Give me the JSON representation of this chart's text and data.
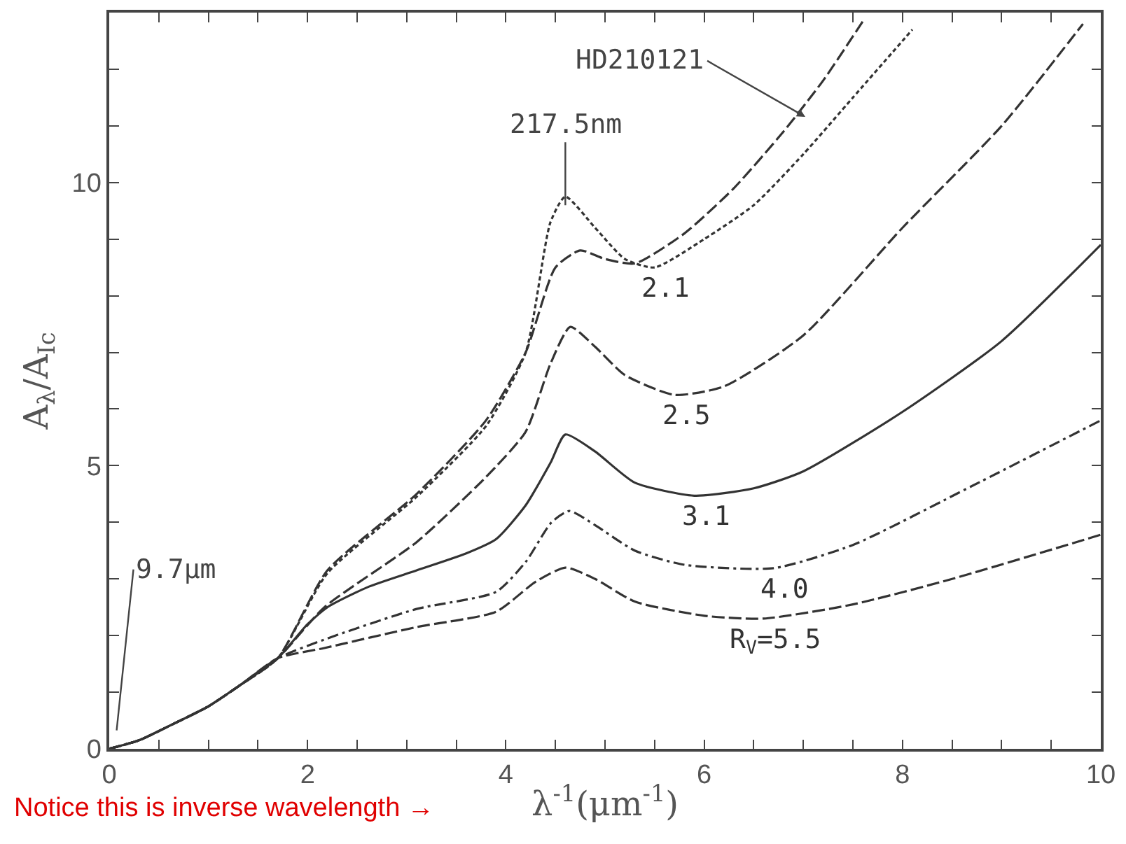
{
  "chart_data": {
    "type": "line",
    "xlabel": "λ$^{-1}$(μm$^{-1}$)",
    "ylabel": "A$_{λ}$/A$_{Ic}$",
    "xlim": [
      0,
      10
    ],
    "ylim": [
      0,
      13
    ],
    "xticks": [
      0,
      {
        "value": 0.5,
        "label": null
      },
      {
        "value": 1,
        "label": null
      },
      {
        "value": 1.5,
        "label": null
      },
      2,
      {
        "value": 2.5,
        "label": null
      },
      {
        "value": 3,
        "label": null
      },
      {
        "value": 3.5,
        "label": null
      },
      4,
      {
        "value": 4.5,
        "label": null
      },
      {
        "value": 5,
        "label": null
      },
      {
        "value": 5.5,
        "label": null
      },
      6,
      {
        "value": 6.5,
        "label": null
      },
      {
        "value": 7,
        "label": null
      },
      {
        "value": 7.5,
        "label": null
      },
      8,
      {
        "value": 8.5,
        "label": null
      },
      {
        "value": 9,
        "label": null
      },
      {
        "value": 9.5,
        "label": null
      },
      10
    ],
    "yticks": [
      0,
      {
        "value": 1,
        "label": null
      },
      {
        "value": 2,
        "label": null
      },
      {
        "value": 3,
        "label": null
      },
      {
        "value": 4,
        "label": null
      },
      5,
      {
        "value": 6,
        "label": null
      },
      {
        "value": 7,
        "label": null
      },
      {
        "value": 8,
        "label": null
      },
      {
        "value": 9,
        "label": null
      },
      10,
      {
        "value": 11,
        "label": null
      },
      {
        "value": 12,
        "label": null
      },
      {
        "value": 13,
        "label": null
      }
    ],
    "legend": false,
    "marker": "none",
    "series": [
      {
        "color": "#333333",
        "line_style": "dashed",
        "x": [
          0,
          0.3,
          0.6,
          1.0,
          1.3,
          1.7,
          2.2,
          3.1,
          3.8,
          4.2,
          4.5,
          4.75,
          5.0,
          5.3,
          5.8,
          6.3,
          6.8,
          7.2,
          7.62
        ],
        "values": [
          0,
          0.15,
          0.4,
          0.75,
          1.1,
          1.6,
          3.15,
          4.5,
          5.8,
          7.0,
          8.5,
          8.8,
          8.65,
          8.57,
          9.1,
          9.9,
          10.9,
          11.8,
          12.9
        ]
      },
      {
        "name": "2.1",
        "color": "#333333",
        "line_style": "dotted",
        "x": [
          0,
          0.3,
          0.6,
          1.0,
          1.3,
          1.7,
          2.2,
          3.1,
          3.8,
          4.2,
          4.45,
          4.6,
          4.9,
          5.2,
          5.5,
          6.0,
          6.5,
          7.0,
          7.5,
          8.1
        ],
        "values": [
          0,
          0.15,
          0.4,
          0.75,
          1.1,
          1.6,
          3.1,
          4.45,
          5.7,
          7.0,
          9.3,
          9.75,
          9.2,
          8.65,
          8.5,
          9.0,
          9.6,
          10.5,
          11.5,
          12.7
        ]
      },
      {
        "name": "2.5",
        "color": "#333333",
        "line_style": "dashed",
        "x": [
          0,
          0.3,
          0.6,
          1.0,
          1.3,
          1.7,
          2.17,
          3.1,
          3.8,
          4.2,
          4.45,
          4.65,
          4.9,
          5.2,
          5.7,
          6.2,
          7.0,
          8.0,
          9.0,
          9.82
        ],
        "values": [
          0,
          0.15,
          0.4,
          0.75,
          1.1,
          1.6,
          2.5,
          3.65,
          4.8,
          5.6,
          6.8,
          7.45,
          7.1,
          6.6,
          6.25,
          6.4,
          7.3,
          9.2,
          11.0,
          12.8
        ]
      },
      {
        "name": "3.1",
        "color": "#333333",
        "line_style": "solid",
        "x": [
          0,
          0.3,
          0.6,
          1.0,
          1.3,
          1.7,
          2.0,
          2.2,
          2.6,
          3.1,
          3.6,
          3.9,
          4.2,
          4.45,
          4.6,
          4.9,
          5.3,
          5.9,
          6.5,
          7.0,
          8.0,
          9.0,
          10.0
        ],
        "values": [
          0,
          0.15,
          0.4,
          0.75,
          1.1,
          1.6,
          2.2,
          2.5,
          2.85,
          3.15,
          3.45,
          3.7,
          4.3,
          5.05,
          5.55,
          5.25,
          4.7,
          4.47,
          4.6,
          4.9,
          5.95,
          7.2,
          8.9
        ]
      },
      {
        "name": "4.0",
        "color": "#333333",
        "line_style": "dashdot",
        "x": [
          0,
          0.3,
          0.6,
          1.0,
          1.3,
          1.7,
          2.17,
          3.1,
          3.9,
          4.2,
          4.46,
          4.64,
          4.9,
          5.3,
          5.8,
          6.7,
          7.5,
          8.7,
          10.0
        ],
        "values": [
          0,
          0.15,
          0.4,
          0.75,
          1.1,
          1.6,
          1.93,
          2.47,
          2.77,
          3.3,
          4.0,
          4.2,
          3.95,
          3.5,
          3.25,
          3.19,
          3.6,
          4.64,
          5.8
        ]
      },
      {
        "name": "R$_{V}$=5.5",
        "color": "#333333",
        "line_style": "dashed",
        "x": [
          0,
          0.3,
          0.6,
          1.0,
          1.3,
          1.7,
          2.17,
          3.1,
          3.9,
          4.3,
          4.6,
          4.9,
          5.3,
          6.0,
          6.6,
          7.5,
          8.5,
          10.0
        ],
        "values": [
          0,
          0.15,
          0.4,
          0.75,
          1.1,
          1.6,
          1.78,
          2.15,
          2.42,
          2.95,
          3.2,
          3.0,
          2.6,
          2.35,
          2.3,
          2.55,
          3.0,
          3.78
        ]
      }
    ],
    "annotations": [
      {
        "text": "HD210121",
        "x": 7.02,
        "y": 11.16
      },
      {
        "text": "217.5nm",
        "x": 4.6,
        "y": 9.6
      },
      "9.7μm",
      "Notice this is inverse wavelength →"
    ]
  }
}
